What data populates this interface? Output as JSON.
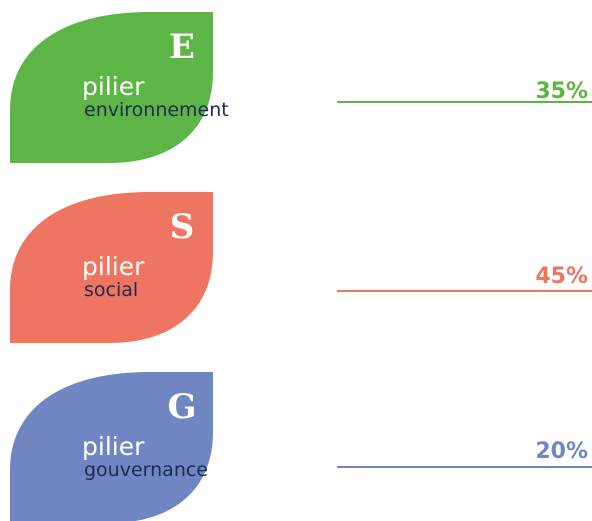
{
  "pillars": [
    {
      "letter": "E",
      "word": "pilier",
      "name": "environnement",
      "percent": "35%",
      "color": "#5db546"
    },
    {
      "letter": "S",
      "word": "pilier",
      "name": "social",
      "percent": "45%",
      "color": "#ee7562"
    },
    {
      "letter": "G",
      "word": "pilier",
      "name": "gouvernance",
      "percent": "20%",
      "color": "#6f86c3"
    }
  ]
}
